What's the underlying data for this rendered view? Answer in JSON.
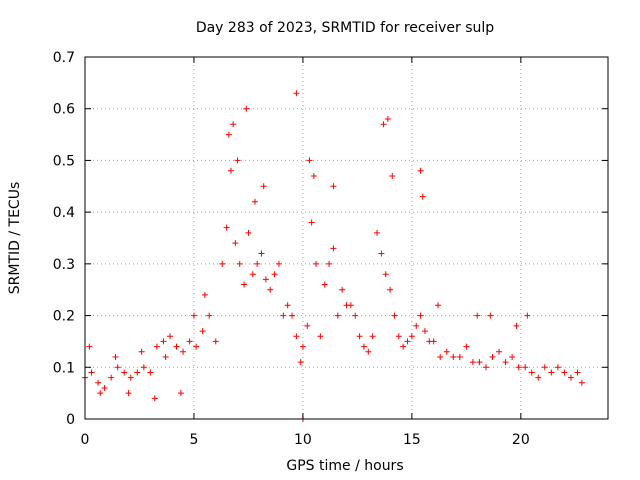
{
  "chart_data": {
    "type": "scatter",
    "title": "Day 283 of 2023, SRMTID for receiver sulp",
    "xlabel": "GPS time / hours",
    "ylabel": "SRMTID / TECUs",
    "xlim": [
      0,
      24
    ],
    "ylim": [
      0,
      0.7
    ],
    "xticks": [
      0,
      5,
      10,
      15,
      20
    ],
    "yticks": [
      0,
      0.1,
      0.2,
      0.3,
      0.4,
      0.5,
      0.6,
      0.7
    ],
    "grid": true,
    "marker": "+",
    "marker_color": "#ff0000",
    "series": [
      {
        "name": "SRMTID",
        "x": [
          0.0,
          0.3,
          0.6,
          0.9,
          1.2,
          1.5,
          1.8,
          2.1,
          2.4,
          2.7,
          3.0,
          3.3,
          3.6,
          3.9,
          4.2,
          4.5,
          4.8,
          5.1,
          5.4,
          5.7,
          6.0,
          6.3,
          6.5,
          6.7,
          6.9,
          7.1,
          7.3,
          7.5,
          7.7,
          7.9,
          8.1,
          8.3,
          8.5,
          8.7,
          8.9,
          9.1,
          9.3,
          9.5,
          9.7,
          9.9,
          10.0,
          10.2,
          10.4,
          10.6,
          10.8,
          11.0,
          11.2,
          11.4,
          11.6,
          11.8,
          12.0,
          12.2,
          12.4,
          12.6,
          12.8,
          13.0,
          13.2,
          13.4,
          13.6,
          13.8,
          14.0,
          14.2,
          14.4,
          14.6,
          14.8,
          15.0,
          15.2,
          15.4,
          15.6,
          15.8,
          16.0,
          16.3,
          16.6,
          16.9,
          17.2,
          17.5,
          17.8,
          18.1,
          18.4,
          18.7,
          19.0,
          19.3,
          19.6,
          19.9,
          20.2,
          20.5,
          20.8,
          21.1,
          21.4,
          21.7,
          22.0,
          22.3,
          22.6,
          22.8,
          0.2,
          0.7,
          1.4,
          2.0,
          2.6,
          3.2,
          3.7,
          4.4,
          5.0,
          5.5,
          6.6,
          6.8,
          7.0,
          7.4,
          7.8,
          8.2,
          9.7,
          10.0,
          10.3,
          10.5,
          11.4,
          13.7,
          13.9,
          14.1,
          15.4,
          15.5,
          16.2,
          18.0,
          18.6,
          19.8,
          20.3
        ],
        "y": [
          0.08,
          0.09,
          0.07,
          0.06,
          0.08,
          0.1,
          0.09,
          0.08,
          0.09,
          0.1,
          0.09,
          0.14,
          0.15,
          0.16,
          0.14,
          0.13,
          0.15,
          0.14,
          0.17,
          0.2,
          0.15,
          0.3,
          0.37,
          0.48,
          0.34,
          0.3,
          0.26,
          0.36,
          0.28,
          0.3,
          0.32,
          0.27,
          0.25,
          0.28,
          0.3,
          0.2,
          0.22,
          0.2,
          0.16,
          0.11,
          0.14,
          0.18,
          0.38,
          0.3,
          0.16,
          0.26,
          0.3,
          0.33,
          0.2,
          0.25,
          0.22,
          0.22,
          0.2,
          0.16,
          0.14,
          0.13,
          0.16,
          0.36,
          0.32,
          0.28,
          0.25,
          0.2,
          0.16,
          0.14,
          0.15,
          0.16,
          0.18,
          0.2,
          0.17,
          0.15,
          0.15,
          0.12,
          0.13,
          0.12,
          0.12,
          0.14,
          0.11,
          0.11,
          0.1,
          0.12,
          0.13,
          0.11,
          0.12,
          0.1,
          0.1,
          0.09,
          0.08,
          0.1,
          0.09,
          0.1,
          0.09,
          0.08,
          0.09,
          0.07,
          0.14,
          0.05,
          0.12,
          0.05,
          0.13,
          0.04,
          0.12,
          0.05,
          0.2,
          0.24,
          0.55,
          0.57,
          0.5,
          0.6,
          0.42,
          0.45,
          0.63,
          0.0,
          0.5,
          0.47,
          0.45,
          0.57,
          0.58,
          0.47,
          0.48,
          0.43,
          0.22,
          0.2,
          0.2,
          0.18,
          0.2
        ]
      }
    ]
  }
}
